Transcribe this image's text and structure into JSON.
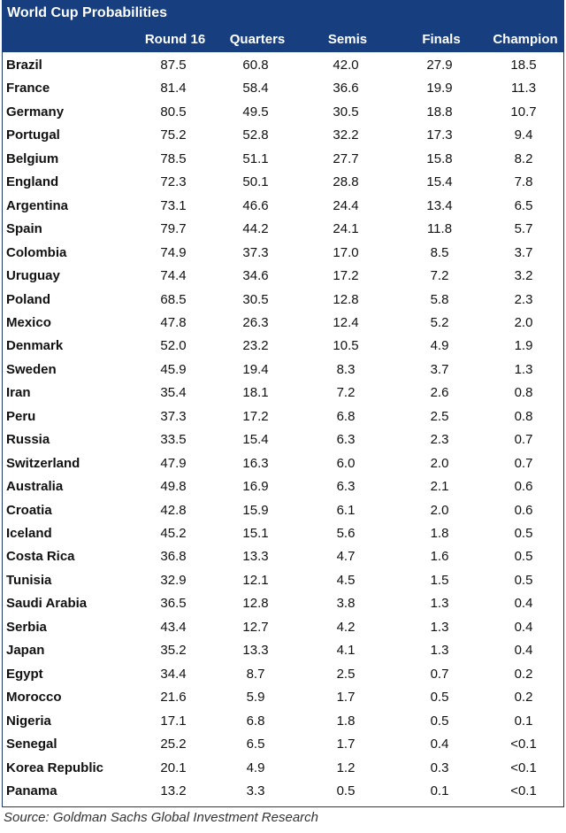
{
  "chart_data": {
    "type": "table",
    "title": "World Cup Probabilities",
    "columns": [
      "Round 16",
      "Quarters",
      "Semis",
      "Finals",
      "Champion"
    ],
    "rows": [
      {
        "country": "Brazil",
        "values": [
          "87.5",
          "60.8",
          "42.0",
          "27.9",
          "18.5"
        ]
      },
      {
        "country": "France",
        "values": [
          "81.4",
          "58.4",
          "36.6",
          "19.9",
          "11.3"
        ]
      },
      {
        "country": "Germany",
        "values": [
          "80.5",
          "49.5",
          "30.5",
          "18.8",
          "10.7"
        ]
      },
      {
        "country": "Portugal",
        "values": [
          "75.2",
          "52.8",
          "32.2",
          "17.3",
          "9.4"
        ]
      },
      {
        "country": "Belgium",
        "values": [
          "78.5",
          "51.1",
          "27.7",
          "15.8",
          "8.2"
        ]
      },
      {
        "country": "England",
        "values": [
          "72.3",
          "50.1",
          "28.8",
          "15.4",
          "7.8"
        ]
      },
      {
        "country": "Argentina",
        "values": [
          "73.1",
          "46.6",
          "24.4",
          "13.4",
          "6.5"
        ]
      },
      {
        "country": "Spain",
        "values": [
          "79.7",
          "44.2",
          "24.1",
          "11.8",
          "5.7"
        ]
      },
      {
        "country": "Colombia",
        "values": [
          "74.9",
          "37.3",
          "17.0",
          "8.5",
          "3.7"
        ]
      },
      {
        "country": "Uruguay",
        "values": [
          "74.4",
          "34.6",
          "17.2",
          "7.2",
          "3.2"
        ]
      },
      {
        "country": "Poland",
        "values": [
          "68.5",
          "30.5",
          "12.8",
          "5.8",
          "2.3"
        ]
      },
      {
        "country": "Mexico",
        "values": [
          "47.8",
          "26.3",
          "12.4",
          "5.2",
          "2.0"
        ]
      },
      {
        "country": "Denmark",
        "values": [
          "52.0",
          "23.2",
          "10.5",
          "4.9",
          "1.9"
        ]
      },
      {
        "country": "Sweden",
        "values": [
          "45.9",
          "19.4",
          "8.3",
          "3.7",
          "1.3"
        ]
      },
      {
        "country": "Iran",
        "values": [
          "35.4",
          "18.1",
          "7.2",
          "2.6",
          "0.8"
        ]
      },
      {
        "country": "Peru",
        "values": [
          "37.3",
          "17.2",
          "6.8",
          "2.5",
          "0.8"
        ]
      },
      {
        "country": "Russia",
        "values": [
          "33.5",
          "15.4",
          "6.3",
          "2.3",
          "0.7"
        ]
      },
      {
        "country": "Switzerland",
        "values": [
          "47.9",
          "16.3",
          "6.0",
          "2.0",
          "0.7"
        ]
      },
      {
        "country": "Australia",
        "values": [
          "49.8",
          "16.9",
          "6.3",
          "2.1",
          "0.6"
        ]
      },
      {
        "country": "Croatia",
        "values": [
          "42.8",
          "15.9",
          "6.1",
          "2.0",
          "0.6"
        ]
      },
      {
        "country": "Iceland",
        "values": [
          "45.2",
          "15.1",
          "5.6",
          "1.8",
          "0.5"
        ]
      },
      {
        "country": "Costa Rica",
        "values": [
          "36.8",
          "13.3",
          "4.7",
          "1.6",
          "0.5"
        ]
      },
      {
        "country": "Tunisia",
        "values": [
          "32.9",
          "12.1",
          "4.5",
          "1.5",
          "0.5"
        ]
      },
      {
        "country": "Saudi Arabia",
        "values": [
          "36.5",
          "12.8",
          "3.8",
          "1.3",
          "0.4"
        ]
      },
      {
        "country": "Serbia",
        "values": [
          "43.4",
          "12.7",
          "4.2",
          "1.3",
          "0.4"
        ]
      },
      {
        "country": "Japan",
        "values": [
          "35.2",
          "13.3",
          "4.1",
          "1.3",
          "0.4"
        ]
      },
      {
        "country": "Egypt",
        "values": [
          "34.4",
          "8.7",
          "2.5",
          "0.7",
          "0.2"
        ]
      },
      {
        "country": "Morocco",
        "values": [
          "21.6",
          "5.9",
          "1.7",
          "0.5",
          "0.2"
        ]
      },
      {
        "country": "Nigeria",
        "values": [
          "17.1",
          "6.8",
          "1.8",
          "0.5",
          "0.1"
        ]
      },
      {
        "country": "Senegal",
        "values": [
          "25.2",
          "6.5",
          "1.7",
          "0.4",
          "<0.1"
        ]
      },
      {
        "country": "Korea Republic",
        "values": [
          "20.1",
          "4.9",
          "1.2",
          "0.3",
          "<0.1"
        ]
      },
      {
        "country": "Panama",
        "values": [
          "13.2",
          "3.3",
          "0.5",
          "0.1",
          "<0.1"
        ]
      }
    ],
    "source": "Source: Goldman Sachs Global Investment Research"
  },
  "colors": {
    "header_background": "#173f80",
    "header_text": "#ffffff",
    "body_text": "#111111"
  }
}
